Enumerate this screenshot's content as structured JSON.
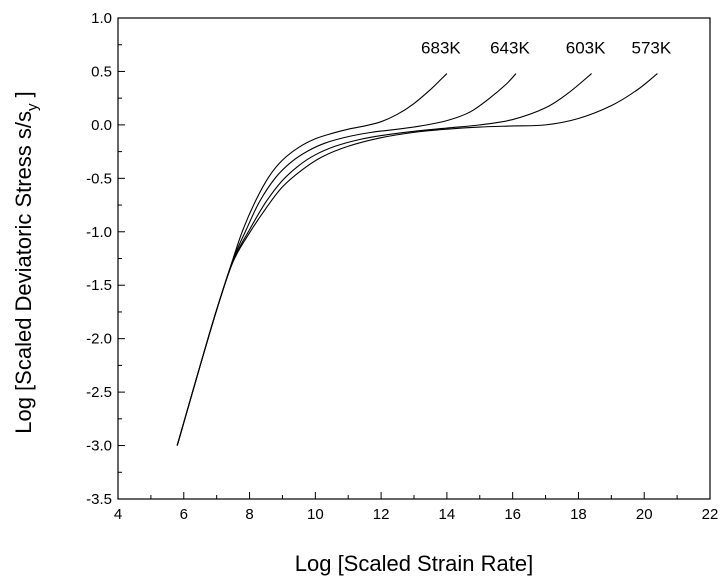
{
  "chart_data": {
    "type": "line",
    "xlabel": "Log [Scaled Strain Rate]",
    "ylabel_main": "Log [Scaled Deviatoric Stress s/s",
    "ylabel_sub": "y",
    "ylabel_end": " ]",
    "xlim": [
      4,
      22
    ],
    "ylim": [
      -3.5,
      1.0
    ],
    "xticks": [
      4,
      6,
      8,
      10,
      12,
      14,
      16,
      18,
      20,
      22
    ],
    "xtick_labels": [
      "4",
      "6",
      "8",
      "10",
      "12",
      "14",
      "16",
      "18",
      "20",
      "22"
    ],
    "yticks": [
      -3.5,
      -3.0,
      -2.5,
      -2.0,
      -1.5,
      -1.0,
      -0.5,
      0.0,
      0.5,
      1.0
    ],
    "ytick_labels": [
      "-3.5",
      "-3.0",
      "-2.5",
      "-2.0",
      "-1.5",
      "-1.0",
      "-0.5",
      "0.0",
      "0.5",
      "1.0"
    ],
    "grid": false,
    "series": [
      {
        "name": "683K",
        "x": [
          5.8,
          6.5,
          7.0,
          7.5,
          7.8,
          8.2,
          8.6,
          9.0,
          9.5,
          10.0,
          10.5,
          11.0,
          11.5,
          12.0,
          12.5,
          13.0,
          13.5,
          13.8,
          14.0
        ],
        "y": [
          -3.0,
          -2.25,
          -1.73,
          -1.25,
          -0.98,
          -0.7,
          -0.48,
          -0.33,
          -0.21,
          -0.13,
          -0.08,
          -0.04,
          -0.01,
          0.03,
          0.1,
          0.2,
          0.33,
          0.42,
          0.48
        ]
      },
      {
        "name": "643K",
        "x": [
          5.8,
          6.5,
          7.0,
          7.5,
          7.9,
          8.3,
          8.8,
          9.3,
          9.8,
          10.3,
          11.0,
          11.7,
          12.5,
          13.2,
          14.0,
          14.7,
          15.3,
          15.8,
          16.1
        ],
        "y": [
          -3.0,
          -2.25,
          -1.73,
          -1.26,
          -0.98,
          -0.72,
          -0.49,
          -0.34,
          -0.24,
          -0.17,
          -0.11,
          -0.07,
          -0.04,
          -0.01,
          0.04,
          0.12,
          0.25,
          0.38,
          0.48
        ]
      },
      {
        "name": "603K",
        "x": [
          5.8,
          6.5,
          7.0,
          7.5,
          8.0,
          8.5,
          9.0,
          9.5,
          10.0,
          10.6,
          11.3,
          12.0,
          13.0,
          14.0,
          15.0,
          16.0,
          17.0,
          17.7,
          18.4
        ],
        "y": [
          -3.0,
          -2.25,
          -1.73,
          -1.27,
          -0.98,
          -0.72,
          -0.52,
          -0.38,
          -0.28,
          -0.2,
          -0.14,
          -0.1,
          -0.06,
          -0.03,
          0.0,
          0.05,
          0.16,
          0.3,
          0.48
        ]
      },
      {
        "name": "573K",
        "x": [
          5.8,
          6.5,
          7.0,
          7.5,
          8.0,
          8.5,
          9.0,
          9.6,
          10.2,
          11.0,
          12.0,
          13.0,
          14.0,
          15.0,
          16.0,
          17.0,
          18.0,
          19.0,
          19.8,
          20.4
        ],
        "y": [
          -3.0,
          -2.25,
          -1.73,
          -1.28,
          -1.01,
          -0.78,
          -0.58,
          -0.42,
          -0.3,
          -0.2,
          -0.12,
          -0.07,
          -0.04,
          -0.02,
          -0.01,
          0.0,
          0.06,
          0.18,
          0.33,
          0.48
        ]
      }
    ],
    "annotations": [
      "683K",
      "643K",
      "603K",
      "573K"
    ]
  }
}
